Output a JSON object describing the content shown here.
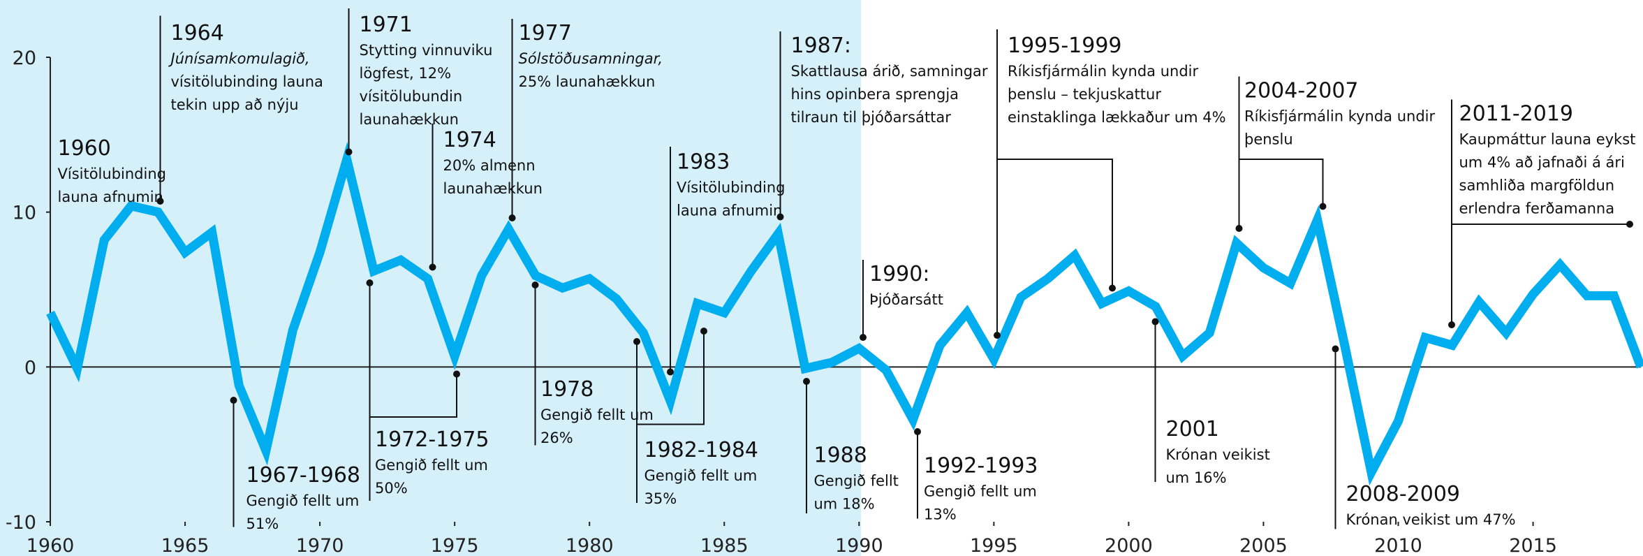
{
  "chart_data": {
    "type": "line",
    "x": [
      1960,
      1961,
      1962,
      1963,
      1964,
      1965,
      1966,
      1967,
      1968,
      1969,
      1970,
      1971,
      1972,
      1973,
      1974,
      1975,
      1976,
      1977,
      1978,
      1979,
      1980,
      1981,
      1982,
      1983,
      1984,
      1985,
      1986,
      1987,
      1988,
      1989,
      1990,
      1991,
      1992,
      1993,
      1994,
      1995,
      1996,
      1997,
      1998,
      1999,
      2000,
      2001,
      2002,
      2003,
      2004,
      2005,
      2006,
      2007,
      2008,
      2009,
      2010,
      2011,
      2012,
      2013,
      2014,
      2015,
      2016,
      2017,
      2018,
      2019
    ],
    "values": [
      3.5,
      -0.1,
      8.2,
      10.4,
      10.0,
      7.4,
      8.7,
      -1.2,
      -5.4,
      2.4,
      7.4,
      13.4,
      6.2,
      6.9,
      5.7,
      0.7,
      5.9,
      8.9,
      5.9,
      5.1,
      5.7,
      4.4,
      2.2,
      -2.2,
      4.1,
      3.5,
      6.2,
      8.6,
      -0.1,
      0.3,
      1.2,
      -0.2,
      -3.4,
      1.4,
      3.5,
      0.5,
      4.5,
      5.7,
      7.2,
      4.1,
      4.9,
      3.9,
      0.7,
      2.2,
      8.0,
      6.4,
      5.4,
      9.5,
      1.5,
      -6.8,
      -3.5,
      1.9,
      1.4,
      4.2,
      2.2,
      4.7,
      6.6,
      4.6,
      4.6,
      0.0
    ],
    "color": "#00aeef",
    "xlim": [
      1960,
      2019
    ],
    "ylim": [
      -10,
      20
    ],
    "xticks": [
      1960,
      1965,
      1970,
      1975,
      1980,
      1985,
      1990,
      1995,
      2000,
      2005,
      2010,
      2015
    ],
    "yticks": [
      -10,
      0,
      10,
      20
    ],
    "annotations": [
      {
        "title": "1964",
        "lines": [
          "Júnísamkomulagið,",
          "vísitölubinding launa",
          "tekin upp að nýju"
        ]
      },
      {
        "title": "1960",
        "lines": [
          "Vísitölubinding",
          "launa afnumin"
        ]
      },
      {
        "title": "1971",
        "lines": [
          "Stytting vinnuviku",
          "lögfest, 12%",
          "vísitölubundin",
          "launahækkun"
        ]
      },
      {
        "title": "1974",
        "lines": [
          "20% almenn",
          "launahækkun"
        ]
      },
      {
        "title": "1977",
        "lines": [
          "Sólstöðusamningar,",
          "25% launahækkun"
        ]
      },
      {
        "title": "1983",
        "lines": [
          "Vísitölubinding",
          "launa afnumin"
        ]
      },
      {
        "title": "1987:",
        "lines": [
          "Skattlausa árið, samningar",
          "hins opinbera sprengja",
          "tilraun til þjóðarsáttar"
        ]
      },
      {
        "title": "1990:",
        "lines": [
          "Þjóðarsátt"
        ]
      },
      {
        "title": "1995-1999",
        "lines": [
          "Ríkisfjármálin kynda undir",
          "þenslu – tekjuskattur",
          "einstaklinga lækkaður um 4%"
        ]
      },
      {
        "title": "2004-2007",
        "lines": [
          "Ríkisfjármálin kynda undir",
          "þenslu"
        ]
      },
      {
        "title": "2011-2019",
        "lines": [
          "Kaupmáttur launa eykst",
          "um 4% að jafnaði á ári",
          "samhliða margföldun",
          "erlendra ferðamanna"
        ]
      },
      {
        "title": "1967-1968",
        "lines": [
          "Gengið fellt um",
          "51%"
        ]
      },
      {
        "title": "1972-1975",
        "lines": [
          "Gengið fellt um",
          "50%"
        ]
      },
      {
        "title": "1978",
        "lines": [
          "Gengið fellt um",
          "26%"
        ]
      },
      {
        "title": "1982-1984",
        "lines": [
          "Gengið fellt um",
          "35%"
        ]
      },
      {
        "title": "1988",
        "lines": [
          "Gengið fellt",
          "um 18%"
        ]
      },
      {
        "title": "1992-1993",
        "lines": [
          "Gengið fellt um",
          "13%"
        ]
      },
      {
        "title": "2001",
        "lines": [
          "Krónan veikist",
          "um 16%"
        ]
      },
      {
        "title": "2008-2009",
        "lines": [
          "Krónan veikist um 47%"
        ]
      }
    ]
  }
}
